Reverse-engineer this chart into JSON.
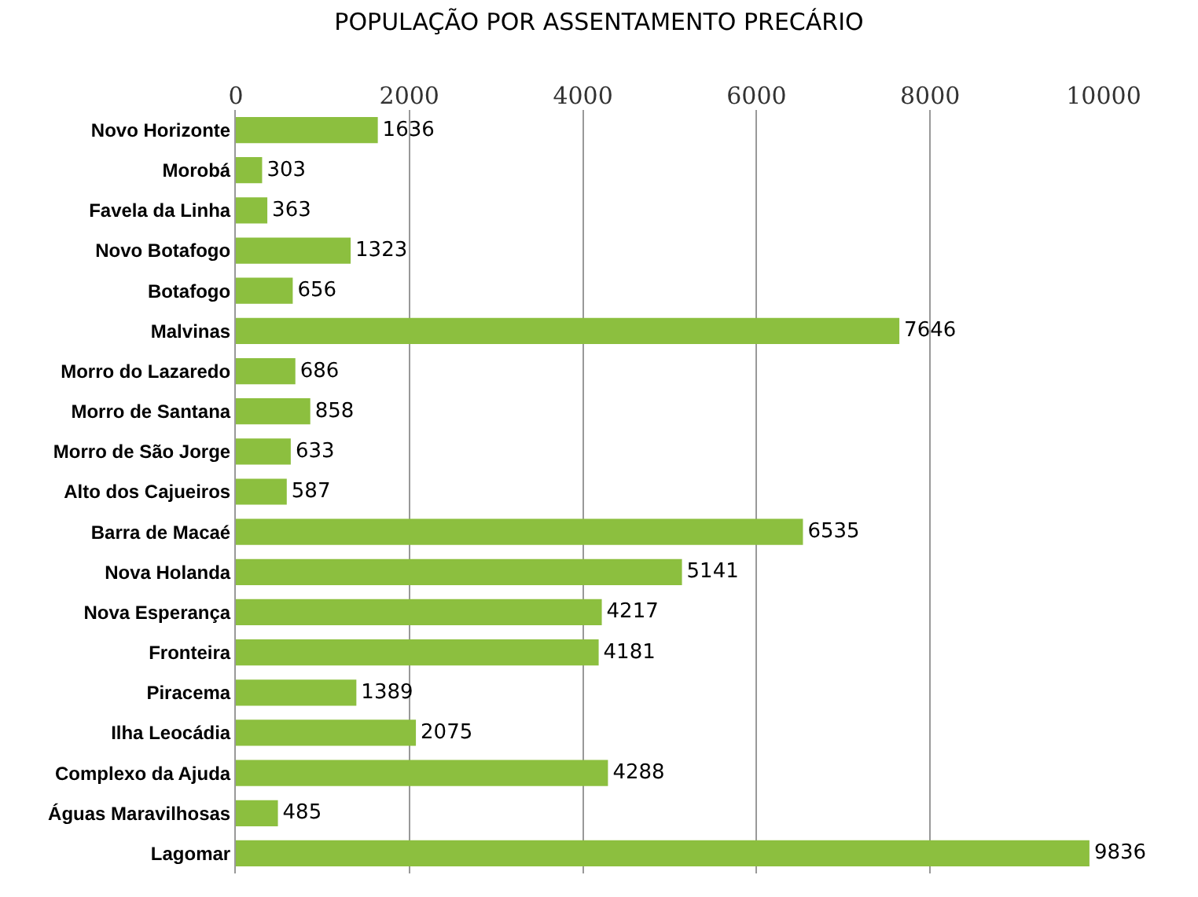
{
  "chart_data": {
    "type": "bar",
    "orientation": "horizontal",
    "title": "POPULAÇÃO POR ASSENTAMENTO PRECÁRIO",
    "categories": [
      "Novo Horizonte",
      "Morobá",
      "Favela da Linha",
      "Novo Botafogo",
      "Botafogo",
      "Malvinas",
      "Morro do Lazaredo",
      "Morro de Santana",
      "Morro de São Jorge",
      "Alto dos Cajueiros",
      "Barra de Macaé",
      "Nova Holanda",
      "Nova Esperança",
      "Fronteira",
      "Piracema",
      "Ilha Leocádia",
      "Complexo da Ajuda",
      "Águas Maravilhosas",
      "Lagomar"
    ],
    "values": [
      1636,
      303,
      363,
      1323,
      656,
      7646,
      686,
      858,
      633,
      587,
      6535,
      5141,
      4217,
      4181,
      1389,
      2075,
      4288,
      485,
      9836
    ],
    "color": "#8cbf3f",
    "xlim": [
      0,
      10000
    ],
    "xticks": [
      0,
      2000,
      4000,
      6000,
      8000,
      10000
    ],
    "grid": "x",
    "data_labels": true,
    "legend": false
  }
}
